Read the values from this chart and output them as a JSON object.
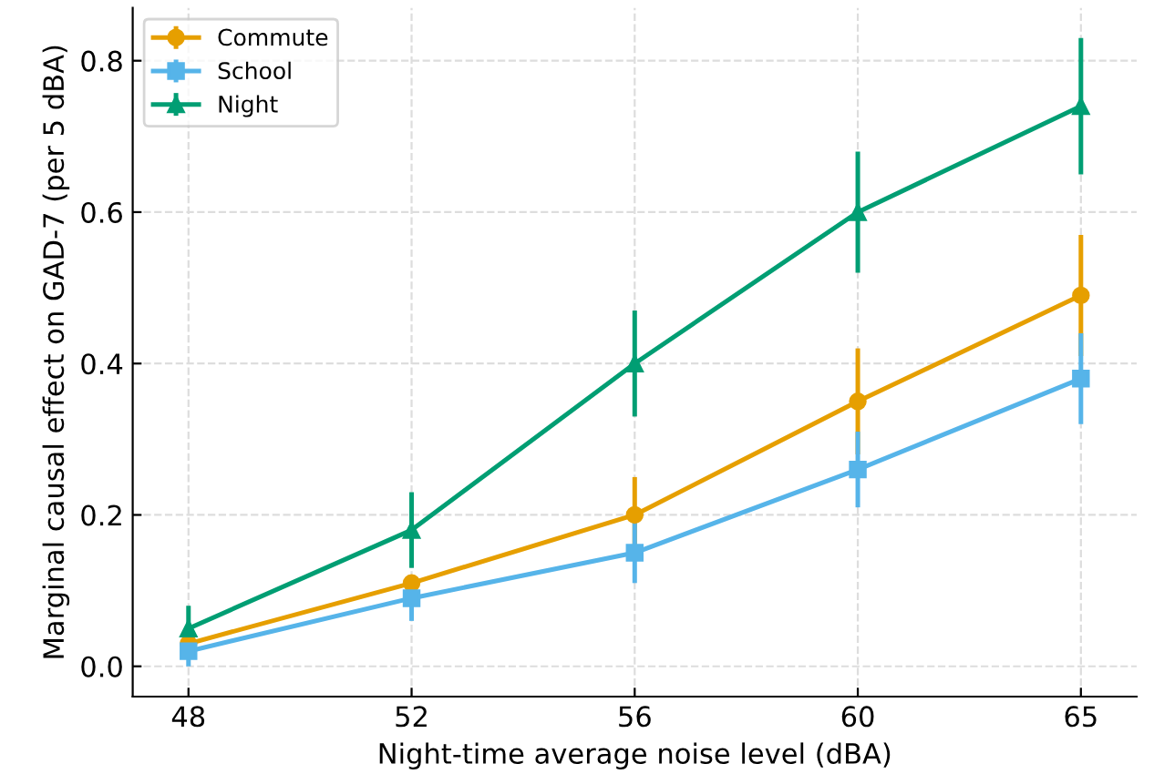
{
  "chart_data": {
    "type": "line",
    "xlabel": "Night-time average noise level (dBA)",
    "ylabel": "Marginal causal effect on GAD-7 (per 5 dBA)",
    "categories": [
      "48",
      "52",
      "56",
      "60",
      "65"
    ],
    "series": [
      {
        "name": "Commute",
        "color": "#e69f00",
        "marker": "circle",
        "values": [
          0.03,
          0.11,
          0.2,
          0.35,
          0.49
        ],
        "errors": [
          null,
          null,
          0.05,
          0.07,
          0.08
        ]
      },
      {
        "name": "School",
        "color": "#56b4e9",
        "marker": "square",
        "values": [
          0.02,
          0.09,
          0.15,
          0.26,
          0.38
        ],
        "errors": [
          0.02,
          0.03,
          0.04,
          0.05,
          0.06
        ]
      },
      {
        "name": "Night",
        "color": "#009e73",
        "marker": "triangle",
        "values": [
          0.05,
          0.18,
          0.4,
          0.6,
          0.74
        ],
        "errors": [
          0.03,
          0.05,
          0.07,
          0.08,
          0.09
        ]
      }
    ],
    "ylim": [
      -0.04,
      0.87
    ],
    "yticks": [
      {
        "value": 0,
        "label": "0.0"
      },
      0.2,
      0.4,
      0.6,
      0.8
    ],
    "grid": true,
    "legend": "top left",
    "line_style": "solid"
  }
}
